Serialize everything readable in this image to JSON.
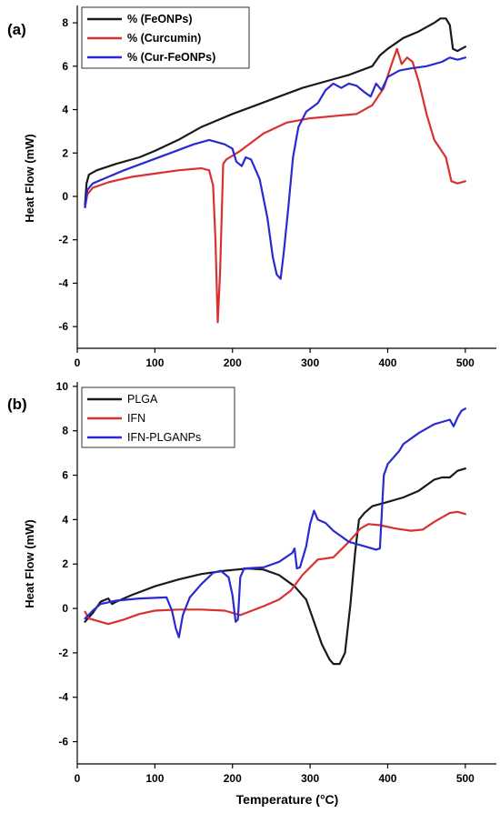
{
  "chart_data": [
    {
      "type": "line",
      "panel_label": "(a)",
      "ylabel": "Heat Flow (mW)",
      "xlabel": "",
      "xlim": [
        0,
        540
      ],
      "ylim": [
        -7,
        8.8
      ],
      "xticks": [
        0,
        100,
        200,
        300,
        400,
        500
      ],
      "yticks": [
        -6,
        -4,
        -2,
        0,
        2,
        4,
        6,
        8
      ],
      "grid": false,
      "legend_position": "top-left",
      "series": [
        {
          "name": "% (FeONPs)",
          "color": "#1a1a1a",
          "points": [
            [
              10,
              -0.4
            ],
            [
              12,
              0.6
            ],
            [
              15,
              1.0
            ],
            [
              25,
              1.2
            ],
            [
              50,
              1.5
            ],
            [
              80,
              1.8
            ],
            [
              100,
              2.1
            ],
            [
              130,
              2.6
            ],
            [
              160,
              3.2
            ],
            [
              200,
              3.8
            ],
            [
              230,
              4.2
            ],
            [
              260,
              4.6
            ],
            [
              290,
              5.0
            ],
            [
              320,
              5.3
            ],
            [
              350,
              5.6
            ],
            [
              380,
              6.0
            ],
            [
              390,
              6.5
            ],
            [
              400,
              6.8
            ],
            [
              420,
              7.3
            ],
            [
              440,
              7.6
            ],
            [
              460,
              8.0
            ],
            [
              468,
              8.2
            ],
            [
              475,
              8.2
            ],
            [
              480,
              7.9
            ],
            [
              484,
              6.8
            ],
            [
              490,
              6.7
            ],
            [
              500,
              6.9
            ]
          ]
        },
        {
          "name": "% (Curcumin)",
          "color": "#d9312f",
          "points": [
            [
              10,
              -0.5
            ],
            [
              13,
              0.1
            ],
            [
              20,
              0.4
            ],
            [
              40,
              0.65
            ],
            [
              70,
              0.9
            ],
            [
              100,
              1.05
            ],
            [
              130,
              1.2
            ],
            [
              160,
              1.3
            ],
            [
              170,
              1.2
            ],
            [
              175,
              0.5
            ],
            [
              178,
              -2.0
            ],
            [
              181,
              -5.8
            ],
            [
              184,
              -3.5
            ],
            [
              188,
              1.5
            ],
            [
              192,
              1.7
            ],
            [
              210,
              2.1
            ],
            [
              240,
              2.9
            ],
            [
              270,
              3.4
            ],
            [
              300,
              3.6
            ],
            [
              330,
              3.7
            ],
            [
              360,
              3.8
            ],
            [
              380,
              4.2
            ],
            [
              395,
              5.0
            ],
            [
              405,
              6.1
            ],
            [
              412,
              6.8
            ],
            [
              418,
              6.1
            ],
            [
              425,
              6.4
            ],
            [
              432,
              6.2
            ],
            [
              440,
              5.3
            ],
            [
              450,
              3.8
            ],
            [
              460,
              2.6
            ],
            [
              475,
              1.8
            ],
            [
              482,
              0.7
            ],
            [
              490,
              0.6
            ],
            [
              500,
              0.7
            ]
          ]
        },
        {
          "name": "% (Cur-FeONPs)",
          "color": "#2a2ad0",
          "points": [
            [
              10,
              -0.5
            ],
            [
              13,
              0.3
            ],
            [
              20,
              0.6
            ],
            [
              40,
              0.9
            ],
            [
              60,
              1.2
            ],
            [
              90,
              1.6
            ],
            [
              120,
              2.0
            ],
            [
              150,
              2.4
            ],
            [
              170,
              2.6
            ],
            [
              190,
              2.4
            ],
            [
              200,
              2.2
            ],
            [
              205,
              1.6
            ],
            [
              212,
              1.4
            ],
            [
              217,
              1.8
            ],
            [
              224,
              1.7
            ],
            [
              235,
              0.8
            ],
            [
              245,
              -1.0
            ],
            [
              252,
              -2.8
            ],
            [
              257,
              -3.6
            ],
            [
              262,
              -3.8
            ],
            [
              266,
              -2.6
            ],
            [
              272,
              -0.5
            ],
            [
              278,
              1.8
            ],
            [
              285,
              3.2
            ],
            [
              295,
              3.9
            ],
            [
              310,
              4.3
            ],
            [
              320,
              4.9
            ],
            [
              330,
              5.2
            ],
            [
              340,
              5.0
            ],
            [
              350,
              5.2
            ],
            [
              360,
              5.1
            ],
            [
              370,
              4.8
            ],
            [
              378,
              4.6
            ],
            [
              385,
              5.2
            ],
            [
              392,
              4.9
            ],
            [
              400,
              5.5
            ],
            [
              415,
              5.8
            ],
            [
              430,
              5.9
            ],
            [
              450,
              6.0
            ],
            [
              470,
              6.2
            ],
            [
              480,
              6.4
            ],
            [
              490,
              6.3
            ],
            [
              500,
              6.4
            ]
          ]
        }
      ]
    },
    {
      "type": "line",
      "panel_label": "(b)",
      "ylabel": "Heat Flow (mW)",
      "xlabel": "Temperature (°C)",
      "xlim": [
        0,
        540
      ],
      "ylim": [
        -7,
        10.2
      ],
      "xticks": [
        0,
        100,
        200,
        300,
        400,
        500
      ],
      "yticks": [
        -6,
        -4,
        -2,
        0,
        2,
        4,
        6,
        8,
        10
      ],
      "grid": false,
      "legend_position": "top-left",
      "series": [
        {
          "name": "PLGA",
          "color": "#1a1a1a",
          "points": [
            [
              10,
              -0.6
            ],
            [
              20,
              -0.2
            ],
            [
              30,
              0.3
            ],
            [
              40,
              0.45
            ],
            [
              45,
              0.2
            ],
            [
              50,
              0.3
            ],
            [
              70,
              0.6
            ],
            [
              100,
              1.0
            ],
            [
              130,
              1.3
            ],
            [
              160,
              1.55
            ],
            [
              190,
              1.7
            ],
            [
              220,
              1.8
            ],
            [
              240,
              1.75
            ],
            [
              260,
              1.5
            ],
            [
              280,
              1.0
            ],
            [
              295,
              0.4
            ],
            [
              305,
              -0.6
            ],
            [
              315,
              -1.6
            ],
            [
              325,
              -2.3
            ],
            [
              330,
              -2.5
            ],
            [
              338,
              -2.5
            ],
            [
              345,
              -2.0
            ],
            [
              352,
              0.2
            ],
            [
              358,
              2.5
            ],
            [
              363,
              4.0
            ],
            [
              370,
              4.3
            ],
            [
              380,
              4.6
            ],
            [
              400,
              4.8
            ],
            [
              420,
              5.0
            ],
            [
              440,
              5.3
            ],
            [
              460,
              5.8
            ],
            [
              470,
              5.9
            ],
            [
              480,
              5.9
            ],
            [
              490,
              6.2
            ],
            [
              500,
              6.3
            ]
          ]
        },
        {
          "name": "IFN",
          "color": "#d9312f",
          "points": [
            [
              10,
              -0.15
            ],
            [
              15,
              -0.45
            ],
            [
              20,
              -0.5
            ],
            [
              40,
              -0.7
            ],
            [
              60,
              -0.5
            ],
            [
              80,
              -0.25
            ],
            [
              100,
              -0.1
            ],
            [
              130,
              -0.05
            ],
            [
              160,
              -0.05
            ],
            [
              190,
              -0.1
            ],
            [
              210,
              -0.3
            ],
            [
              225,
              -0.1
            ],
            [
              240,
              0.1
            ],
            [
              260,
              0.4
            ],
            [
              275,
              0.8
            ],
            [
              290,
              1.5
            ],
            [
              310,
              2.2
            ],
            [
              330,
              2.3
            ],
            [
              350,
              3.0
            ],
            [
              365,
              3.6
            ],
            [
              375,
              3.8
            ],
            [
              390,
              3.75
            ],
            [
              410,
              3.6
            ],
            [
              430,
              3.5
            ],
            [
              445,
              3.55
            ],
            [
              460,
              3.9
            ],
            [
              480,
              4.3
            ],
            [
              490,
              4.35
            ],
            [
              500,
              4.25
            ]
          ]
        },
        {
          "name": "IFN-PLGANPs",
          "color": "#2a2ad0",
          "points": [
            [
              10,
              -0.45
            ],
            [
              20,
              -0.1
            ],
            [
              30,
              0.2
            ],
            [
              50,
              0.35
            ],
            [
              80,
              0.45
            ],
            [
              115,
              0.5
            ],
            [
              122,
              -0.1
            ],
            [
              127,
              -0.9
            ],
            [
              131,
              -1.3
            ],
            [
              136,
              -0.3
            ],
            [
              145,
              0.5
            ],
            [
              160,
              1.1
            ],
            [
              175,
              1.6
            ],
            [
              185,
              1.7
            ],
            [
              195,
              1.4
            ],
            [
              200,
              0.6
            ],
            [
              204,
              -0.6
            ],
            [
              207,
              -0.5
            ],
            [
              210,
              1.4
            ],
            [
              215,
              1.8
            ],
            [
              240,
              1.85
            ],
            [
              260,
              2.1
            ],
            [
              277,
              2.5
            ],
            [
              280,
              2.7
            ],
            [
              283,
              1.8
            ],
            [
              287,
              1.85
            ],
            [
              295,
              2.8
            ],
            [
              300,
              3.8
            ],
            [
              305,
              4.4
            ],
            [
              310,
              4.0
            ],
            [
              320,
              3.85
            ],
            [
              330,
              3.5
            ],
            [
              350,
              3.0
            ],
            [
              370,
              2.8
            ],
            [
              385,
              2.65
            ],
            [
              390,
              2.7
            ],
            [
              395,
              6.0
            ],
            [
              400,
              6.5
            ],
            [
              415,
              7.1
            ],
            [
              420,
              7.4
            ],
            [
              440,
              7.9
            ],
            [
              460,
              8.3
            ],
            [
              470,
              8.4
            ],
            [
              480,
              8.5
            ],
            [
              485,
              8.2
            ],
            [
              490,
              8.6
            ],
            [
              495,
              8.9
            ],
            [
              500,
              9.0
            ]
          ]
        }
      ]
    }
  ]
}
